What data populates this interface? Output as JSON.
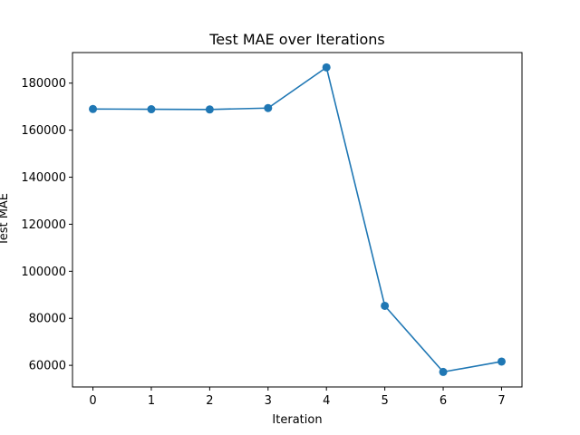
{
  "chart_data": {
    "type": "line",
    "title": "Test MAE over Iterations",
    "xlabel": "Iteration",
    "ylabel": "Test MAE",
    "x": [
      0,
      1,
      2,
      3,
      4,
      5,
      6,
      7
    ],
    "series": [
      {
        "values": [
          169000,
          168900,
          168800,
          169400,
          186700,
          85300,
          57200,
          61600
        ],
        "color": "#1f77b4",
        "marker": "circle"
      }
    ],
    "xlim": [
      -0.35,
      7.35
    ],
    "ylim": [
      50800,
      193000
    ],
    "xticks": [
      0,
      1,
      2,
      3,
      4,
      5,
      6,
      7
    ],
    "yticks": [
      60000,
      80000,
      100000,
      120000,
      140000,
      160000,
      180000
    ],
    "grid": false,
    "legend": false
  }
}
